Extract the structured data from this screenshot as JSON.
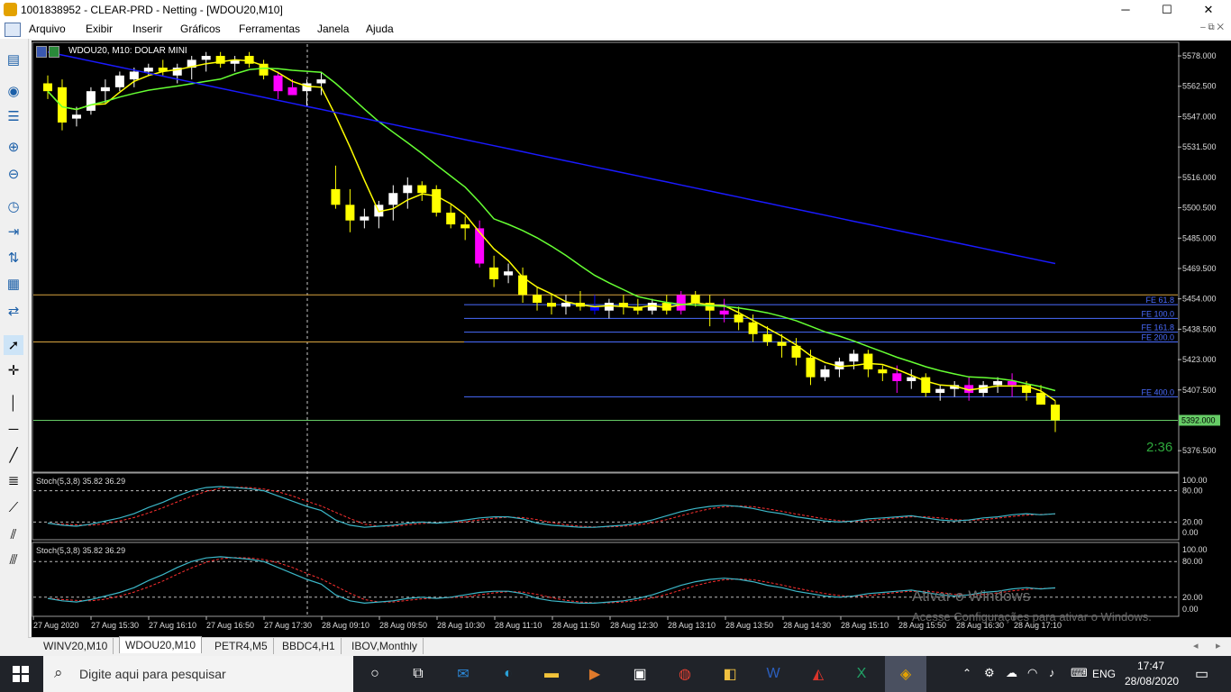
{
  "window": {
    "title": "1001838952 - CLEAR-PRD - Netting - [WDOU20,M10]",
    "controls": {
      "minimize": "─",
      "maximize": "☐",
      "close": "✕"
    }
  },
  "menu": {
    "items": [
      "Arquivo",
      "Exibir",
      "Inserir",
      "Gráficos",
      "Ferramentas",
      "Janela",
      "Ajuda"
    ],
    "mdi_controls": "–  ⧉  ✕"
  },
  "chart": {
    "header": "WDOU20, M10:  DOLAR MINI",
    "countdown": "2:36",
    "current_price_label": "5392.000",
    "price_ticks": [
      "5578.000",
      "5562.500",
      "5547.000",
      "5531.500",
      "5516.000",
      "5500.500",
      "5485.000",
      "5469.500",
      "5454.000",
      "5438.500",
      "5423.000",
      "5407.500",
      "5376.500"
    ],
    "fib_labels": [
      "FE 61.8",
      "FE 100.0",
      "FE 161.8",
      "FE 200.0",
      "FE 400.0"
    ],
    "time_ticks": [
      "27 Aug 2020",
      "27 Aug 15:30",
      "27 Aug 16:10",
      "27 Aug 16:50",
      "27 Aug 17:30",
      "28 Aug 09:10",
      "28 Aug 09:50",
      "28 Aug 10:30",
      "28 Aug 11:10",
      "28 Aug 11:50",
      "28 Aug 12:30",
      "28 Aug 13:10",
      "28 Aug 13:50",
      "28 Aug 14:30",
      "28 Aug 15:10",
      "28 Aug 15:50",
      "28 Aug 16:30",
      "28 Aug 17:10"
    ],
    "colors": {
      "bull": "#ffffff",
      "bear": "#ffff00",
      "magenta": "#ff00ff",
      "blue": "#0000ff",
      "ma_fast": "#ffff00",
      "ma_mid": "#66ff33",
      "ma_slow": "#1a1aff",
      "stoch_main": "#3cb7c8",
      "stoch_signal": "#ff3030"
    }
  },
  "chart_data": {
    "type": "candlestick",
    "symbol": "WDOU20",
    "timeframe": "M10",
    "ohlc": [
      [
        5564,
        5568,
        5556,
        5560
      ],
      [
        5562,
        5566,
        5540,
        5544
      ],
      [
        5546,
        5552,
        5542,
        5548
      ],
      [
        5550,
        5562,
        5548,
        5560
      ],
      [
        5560,
        5566,
        5554,
        5562
      ],
      [
        5562,
        5570,
        5560,
        5568
      ],
      [
        5566,
        5572,
        5562,
        5570
      ],
      [
        5570,
        5574,
        5568,
        5572
      ],
      [
        5572,
        5576,
        5568,
        5570
      ],
      [
        5568,
        5574,
        5564,
        5572
      ],
      [
        5572,
        5578,
        5566,
        5576
      ],
      [
        5576,
        5580,
        5570,
        5578
      ],
      [
        5578,
        5580,
        5572,
        5574
      ],
      [
        5574,
        5578,
        5570,
        5576
      ],
      [
        5578,
        5580,
        5572,
        5574
      ],
      [
        5574,
        5576,
        5566,
        5568
      ],
      [
        5568,
        5570,
        5556,
        5560
      ],
      [
        5562,
        5566,
        5558,
        5558
      ],
      [
        5560,
        5566,
        5552,
        5564
      ],
      [
        5564,
        5570,
        5558,
        5566
      ],
      [
        5510,
        5522,
        5500,
        5502
      ],
      [
        5502,
        5510,
        5488,
        5494
      ],
      [
        5494,
        5500,
        5490,
        5496
      ],
      [
        5496,
        5504,
        5490,
        5502
      ],
      [
        5502,
        5512,
        5494,
        5508
      ],
      [
        5508,
        5516,
        5500,
        5512
      ],
      [
        5512,
        5514,
        5504,
        5508
      ],
      [
        5510,
        5512,
        5496,
        5498
      ],
      [
        5498,
        5502,
        5490,
        5492
      ],
      [
        5492,
        5496,
        5484,
        5490
      ],
      [
        5490,
        5494,
        5470,
        5472
      ],
      [
        5470,
        5476,
        5460,
        5464
      ],
      [
        5466,
        5472,
        5462,
        5468
      ],
      [
        5466,
        5470,
        5452,
        5456
      ],
      [
        5456,
        5460,
        5448,
        5452
      ],
      [
        5452,
        5456,
        5446,
        5450
      ],
      [
        5450,
        5456,
        5446,
        5452
      ],
      [
        5452,
        5458,
        5448,
        5450
      ],
      [
        5450,
        5456,
        5446,
        5448
      ],
      [
        5448,
        5454,
        5444,
        5452
      ],
      [
        5452,
        5456,
        5446,
        5450
      ],
      [
        5450,
        5454,
        5446,
        5448
      ],
      [
        5448,
        5454,
        5446,
        5452
      ],
      [
        5452,
        5456,
        5446,
        5448
      ],
      [
        5448,
        5458,
        5446,
        5456
      ],
      [
        5456,
        5458,
        5450,
        5452
      ],
      [
        5452,
        5456,
        5440,
        5448
      ],
      [
        5448,
        5454,
        5442,
        5446
      ],
      [
        5446,
        5450,
        5438,
        5442
      ],
      [
        5442,
        5446,
        5432,
        5436
      ],
      [
        5436,
        5440,
        5430,
        5432
      ],
      [
        5432,
        5436,
        5424,
        5430
      ],
      [
        5430,
        5434,
        5420,
        5424
      ],
      [
        5424,
        5428,
        5410,
        5414
      ],
      [
        5414,
        5420,
        5412,
        5418
      ],
      [
        5418,
        5424,
        5414,
        5422
      ],
      [
        5422,
        5428,
        5418,
        5426
      ],
      [
        5426,
        5428,
        5414,
        5418
      ],
      [
        5418,
        5420,
        5412,
        5416
      ],
      [
        5416,
        5420,
        5406,
        5412
      ],
      [
        5412,
        5418,
        5408,
        5414
      ],
      [
        5414,
        5416,
        5404,
        5406
      ],
      [
        5406,
        5410,
        5402,
        5408
      ],
      [
        5408,
        5412,
        5404,
        5410
      ],
      [
        5410,
        5414,
        5402,
        5406
      ],
      [
        5406,
        5412,
        5404,
        5410
      ],
      [
        5410,
        5414,
        5406,
        5412
      ],
      [
        5412,
        5416,
        5404,
        5410
      ],
      [
        5410,
        5412,
        5402,
        5406
      ],
      [
        5406,
        5410,
        5400,
        5400
      ],
      [
        5400,
        5402,
        5386,
        5392
      ]
    ],
    "moving_averages": {
      "fast_end": 5402,
      "mid_end": 5412,
      "slow_end": 5472
    },
    "fibonacci_expansion": {
      "FE 61.8": 5451,
      "FE 100.0": 5444,
      "FE 161.8": 5437,
      "FE 200.0": 5432,
      "FE 400.0": 5404
    },
    "horizontal_lines": [
      5456,
      5432,
      5392
    ],
    "current_price": 5392.0,
    "ylim": [
      5366,
      5584
    ],
    "stochastic": {
      "label": "Stoch(5,3,8) 35.82 36.29",
      "main": 35.82,
      "signal": 36.29,
      "levels": [
        20,
        80
      ],
      "ylim": [
        0,
        100
      ]
    }
  },
  "stoch_panels": [
    {
      "label": "Stoch(5,3,8) 35.82 36.29",
      "ticks": [
        "100.00",
        "80.00",
        "20.00",
        "0.00"
      ]
    },
    {
      "label": "Stoch(5,3,8) 35.82 36.29",
      "ticks": [
        "100.00",
        "80.00",
        "20.00",
        "0.00"
      ]
    }
  ],
  "tabs": [
    "WINV20,M10",
    "WDOU20,M10",
    "PETR4,M5",
    "BBDC4,H1",
    "IBOV,Monthly"
  ],
  "active_tab": "WDOU20,M10",
  "watermark": {
    "line1": "Ativar o Windows",
    "line2": "Acesse Configurações para ativar o Windows."
  },
  "taskbar": {
    "search_placeholder": "Digite aqui para pesquisar",
    "time": "17:47",
    "date": "28/08/2020",
    "language": "ENG"
  }
}
